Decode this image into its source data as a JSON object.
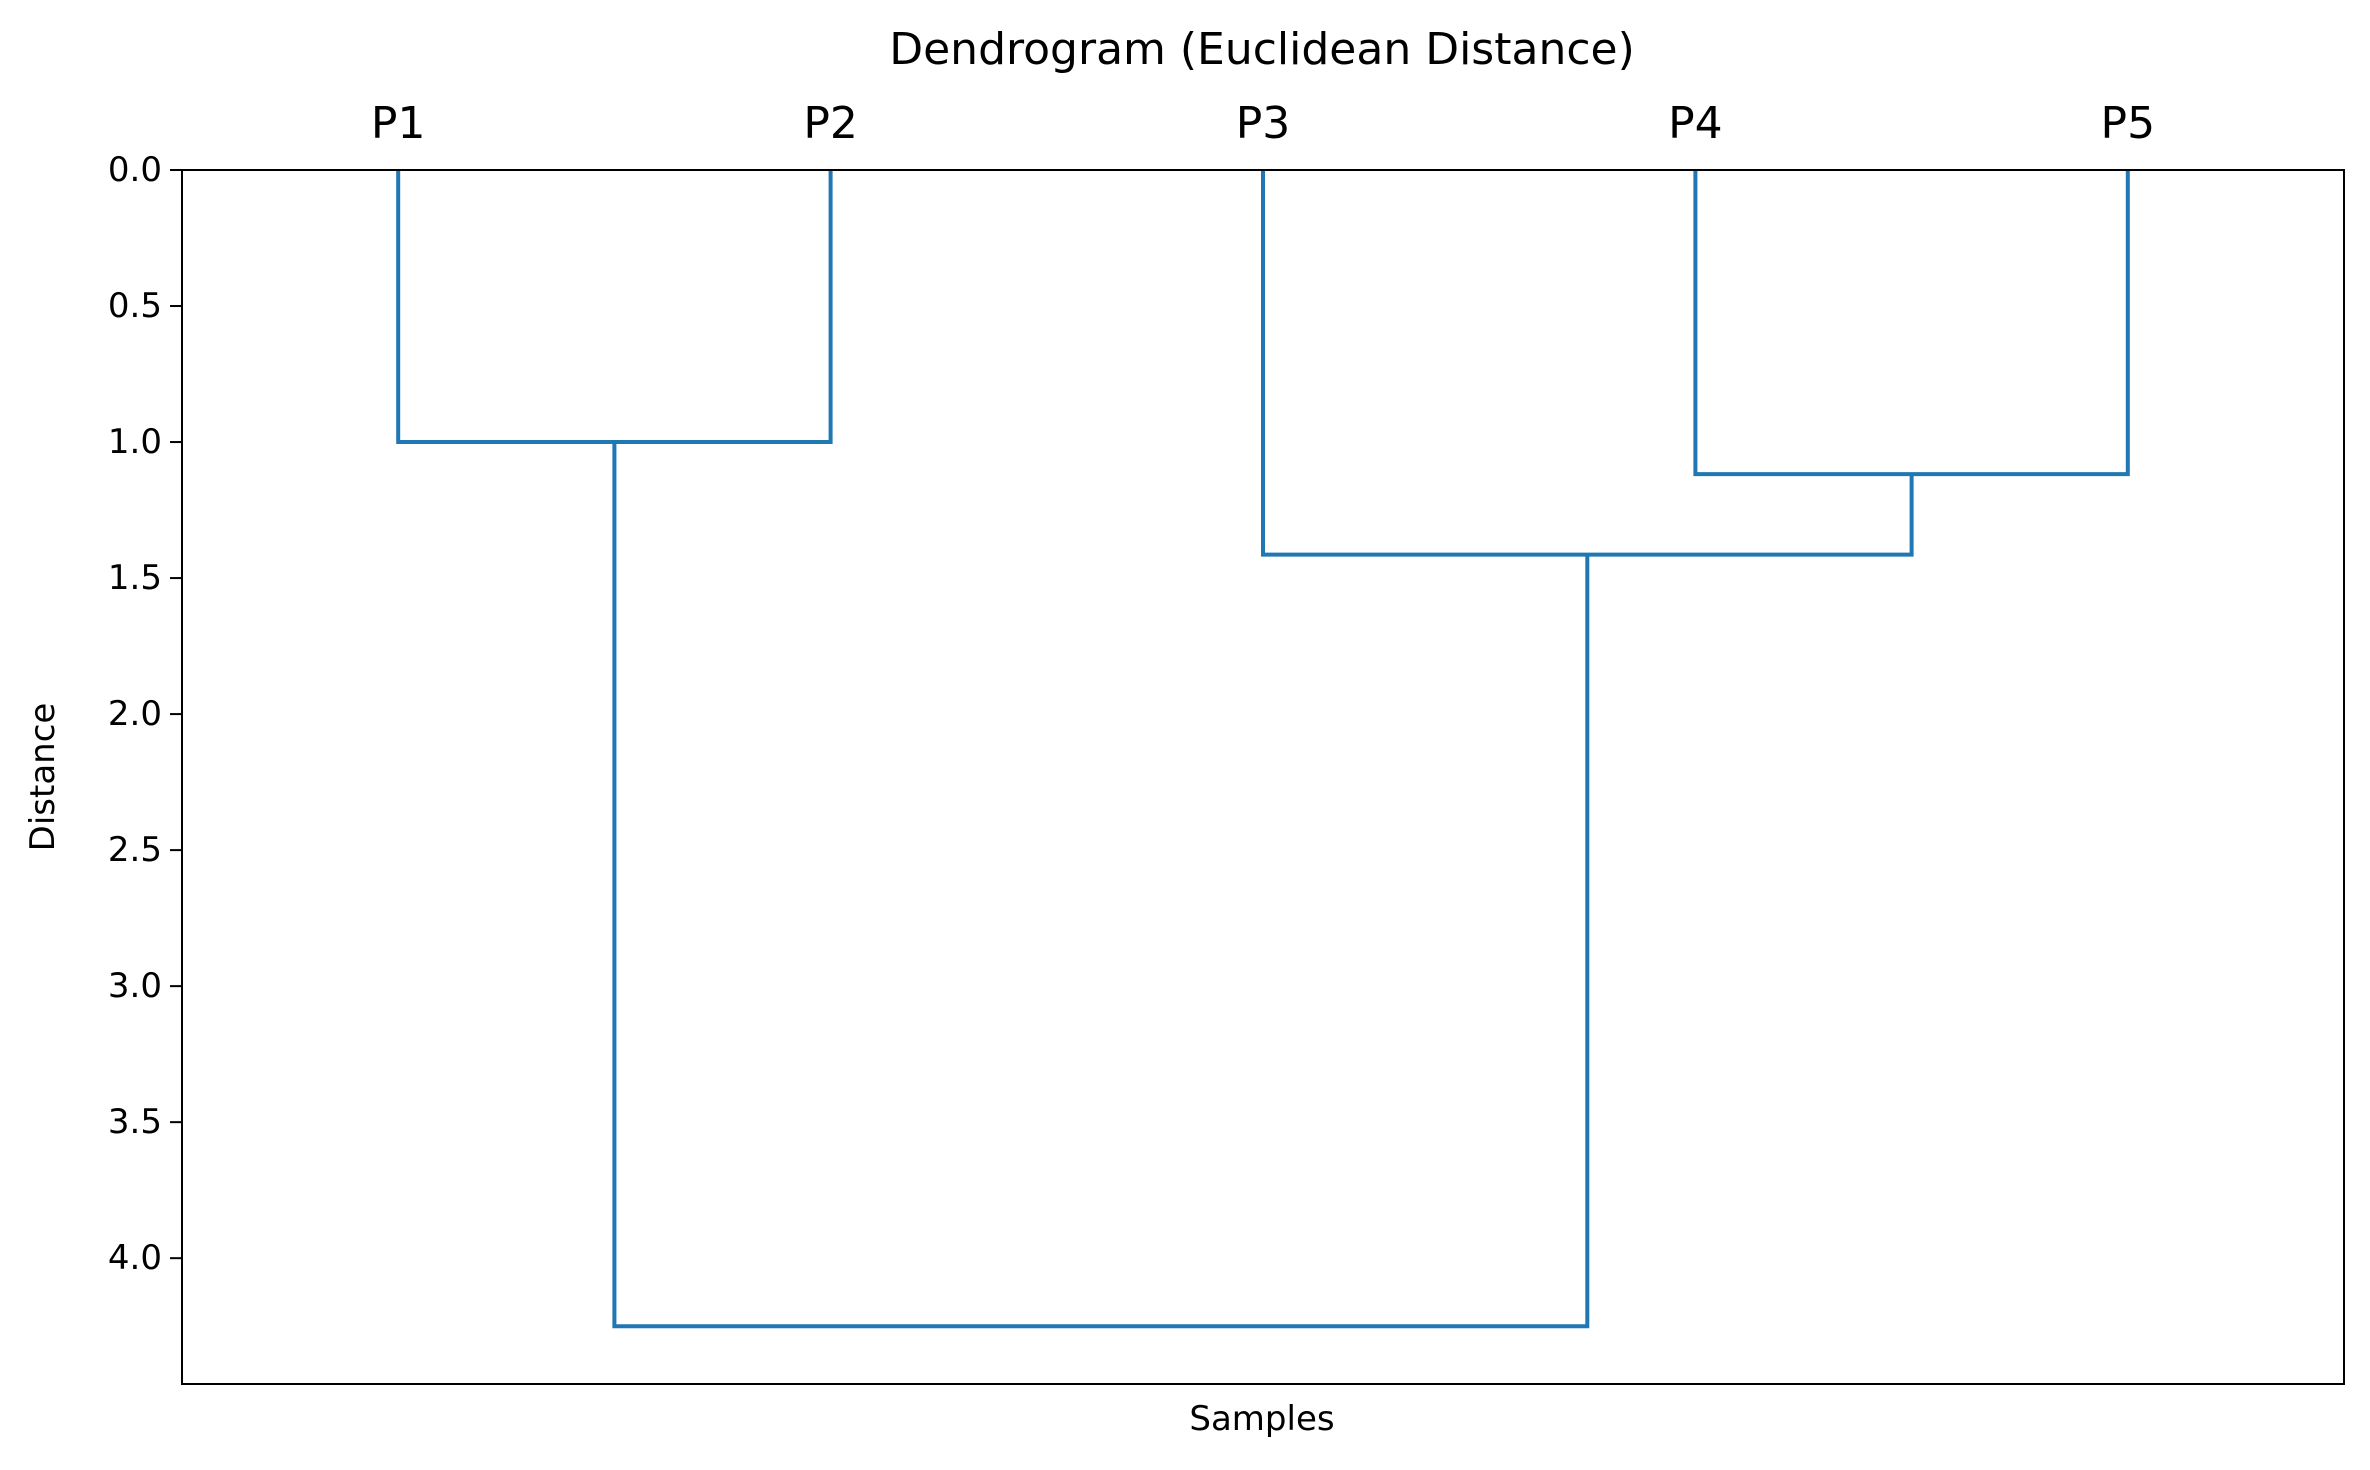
{
  "chart_data": {
    "type": "dendrogram",
    "title": "Dendrogram (Euclidean Distance)",
    "xlabel": "Samples",
    "ylabel": "Distance",
    "leaves": [
      "P1",
      "P2",
      "P3",
      "P4",
      "P5"
    ],
    "links": [
      {
        "left": "P1",
        "right": "P2",
        "distance": 1.0
      },
      {
        "left": "P4",
        "right": "P5",
        "distance": 1.118
      },
      {
        "left": "P3",
        "right": "P4+P5",
        "distance": 1.414
      },
      {
        "left": "P1+P2",
        "right": "P3+P4+P5",
        "distance": 4.25
      }
    ],
    "y_ticks": [
      "0.0",
      "0.5",
      "1.0",
      "1.5",
      "2.0",
      "2.5",
      "3.0",
      "3.5",
      "4.0"
    ],
    "y_tick_values": [
      0,
      0.5,
      1.0,
      1.5,
      2.0,
      2.5,
      3.0,
      3.5,
      4.0
    ],
    "ylim": [
      0,
      4.4625
    ],
    "y_inverted": true,
    "leaf_labels_position": "top",
    "grid": false,
    "line_color": "#1f77b4"
  }
}
